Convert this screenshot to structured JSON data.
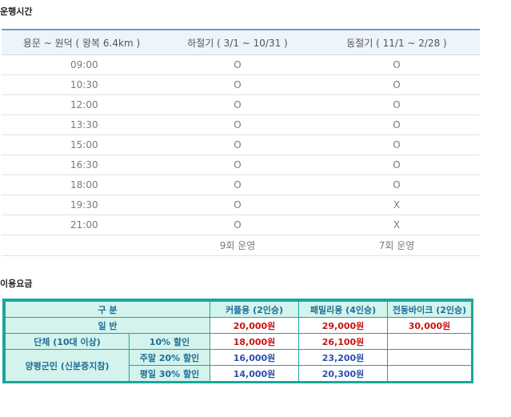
{
  "sections": {
    "schedule_title": "운행시간",
    "fare_title": "이용요금"
  },
  "schedule": {
    "headers": [
      "용문 ~ 원덕 ( 왕복 6.4km )",
      "하절기 ( 3/1 ~ 10/31 )",
      "동절기 ( 11/1 ~ 2/28 )"
    ],
    "rows": [
      {
        "time": "09:00",
        "summer": "O",
        "winter": "O"
      },
      {
        "time": "10:30",
        "summer": "O",
        "winter": "O"
      },
      {
        "time": "12:00",
        "summer": "O",
        "winter": "O"
      },
      {
        "time": "13:30",
        "summer": "O",
        "winter": "O"
      },
      {
        "time": "15:00",
        "summer": "O",
        "winter": "O"
      },
      {
        "time": "16:30",
        "summer": "O",
        "winter": "O"
      },
      {
        "time": "18:00",
        "summer": "O",
        "winter": "O"
      },
      {
        "time": "19:30",
        "summer": "O",
        "winter": "X"
      },
      {
        "time": "21:00",
        "summer": "O",
        "winter": "X"
      }
    ],
    "total": {
      "summer": "9회 운영",
      "winter": "7회 운영"
    }
  },
  "fare": {
    "header": {
      "category": "구 분",
      "couple": "커플용 (2인승)",
      "family": "패밀리용 (4인승)",
      "ebike": "전동바이크 (2인승)"
    },
    "general": {
      "label": "일 반",
      "couple": "20,000원",
      "family": "29,000원",
      "ebike": "30,000원"
    },
    "group": {
      "label": "단체 (10대 이상)",
      "discount": "10% 할인",
      "couple": "18,000원",
      "family": "26,100원"
    },
    "residents": {
      "label": "양평군민 (신분증지참)",
      "weekend": {
        "discount": "주말 20% 할인",
        "couple": "16,000원",
        "family": "23,200원"
      },
      "weekday": {
        "discount": "평일 30% 할인",
        "couple": "14,000원",
        "family": "20,300원"
      }
    }
  },
  "colors": {
    "fare_border": "#19a79a",
    "fare_header_bg": "#d4f3ec",
    "price_red": "#c81414",
    "price_blue": "#2a4fb0",
    "schedule_top_border": "#6a9ccf"
  }
}
